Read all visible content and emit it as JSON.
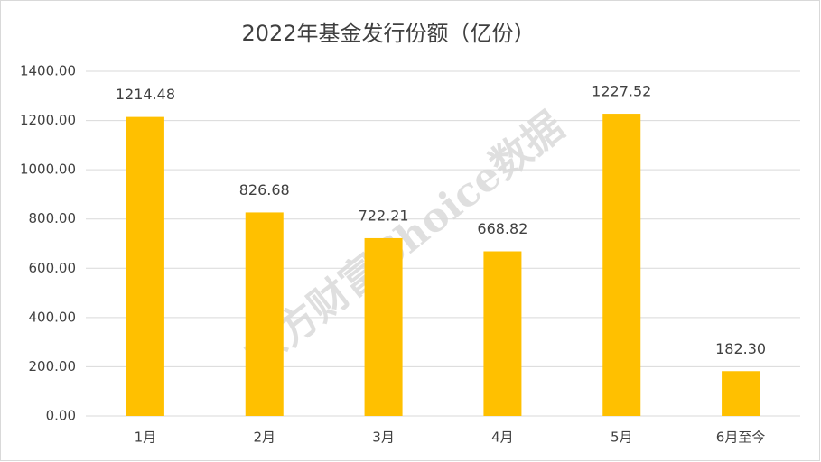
{
  "chart_data": {
    "type": "bar",
    "title": "2022年基金发行份额（亿份）",
    "categories": [
      "1月",
      "2月",
      "3月",
      "4月",
      "5月",
      "6月至今"
    ],
    "values": [
      1214.48,
      826.68,
      722.21,
      668.82,
      1227.52,
      182.3
    ],
    "value_labels": [
      "1214.48",
      "826.68",
      "722.21",
      "668.82",
      "1227.52",
      "182.30"
    ],
    "color": "#ffc000",
    "ylim": [
      0,
      1400
    ],
    "yticks": [
      {
        "value": 0,
        "label": "0.00"
      },
      {
        "value": 200,
        "label": "200.00"
      },
      {
        "value": 400,
        "label": "400.00"
      },
      {
        "value": 600,
        "label": "600.00"
      },
      {
        "value": 800,
        "label": "800.00"
      },
      {
        "value": 1000,
        "label": "1000.00"
      },
      {
        "value": 1200,
        "label": "1200.00"
      },
      {
        "value": 1400,
        "label": "1400.00"
      }
    ],
    "grid": true,
    "watermark": "东方财富Choice数据"
  }
}
